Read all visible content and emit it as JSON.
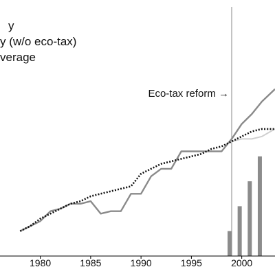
{
  "chart_data": {
    "type": "line",
    "legend": {
      "position": "top-left (cropped)",
      "entries": [
        "y",
        "y (w/o eco-tax)",
        "verage"
      ]
    },
    "annotation": {
      "text": "Eco-tax reform →",
      "x": 1999
    },
    "xlim": [
      1976,
      2003.3
    ],
    "ylim": [
      0,
      100
    ],
    "x_ticks": [
      1980,
      1985,
      1990,
      1995,
      2000
    ],
    "x_tick_labels": [
      "1980",
      "1985",
      "1990",
      "1995",
      "2000"
    ],
    "grid": false,
    "colors": {
      "series_with_tax": "#8a8a8a",
      "series_without_tax": "#cfcfcf",
      "average": "#111111",
      "bars": "#8c8c8c",
      "reform_line": "#888888"
    },
    "series": [
      {
        "kind": "solid-gray",
        "x": [
          1978,
          1979,
          1980,
          1981,
          1982,
          1983,
          1984,
          1985,
          1986,
          1987,
          1988,
          1989,
          1990,
          1991,
          1992,
          1993,
          1994,
          1995,
          1996,
          1997,
          1998,
          1999,
          2000,
          2001,
          2002,
          2003.3
        ],
        "values": [
          10,
          12,
          14,
          18,
          19,
          21,
          21,
          22,
          17,
          18,
          18,
          25,
          25,
          32,
          35,
          35,
          42,
          42,
          42,
          42,
          42,
          47,
          53,
          57,
          62,
          67
        ]
      },
      {
        "kind": "solid-light",
        "x": [
          1999,
          2000,
          2001,
          2002,
          2003.3
        ],
        "values": [
          46,
          47,
          47,
          48,
          51
        ]
      },
      {
        "kind": "dotted-black",
        "x": [
          1978,
          1979,
          1980,
          1981,
          1982,
          1983,
          1984,
          1985,
          1986,
          1987,
          1988,
          1989,
          1990,
          1991,
          1992,
          1993,
          1994,
          1995,
          1996,
          1997,
          1998,
          1999,
          2000,
          2001,
          2002,
          2003.3
        ],
        "values": [
          10,
          12,
          15,
          17,
          19,
          21,
          22,
          24,
          25,
          26,
          27,
          28,
          33,
          35,
          37,
          38,
          39,
          40,
          41,
          43,
          44,
          46,
          48,
          50,
          51,
          51
        ]
      }
    ],
    "bars": {
      "x": [
        1999,
        2000,
        2001,
        2002
      ],
      "values": [
        10,
        20,
        30,
        40
      ]
    }
  }
}
